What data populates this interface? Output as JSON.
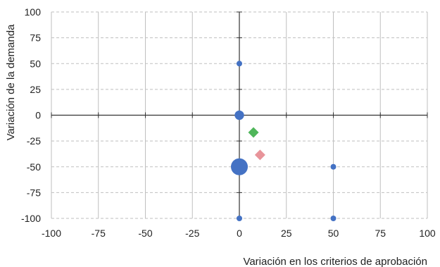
{
  "chart_data": {
    "type": "scatter",
    "xlabel": "Variación en los criterios de aprobación",
    "ylabel": "Variación de la demanda",
    "xlim": [
      -100,
      100
    ],
    "ylim": [
      -100,
      100
    ],
    "x_ticks": [
      -100,
      -75,
      -50,
      -25,
      0,
      25,
      50,
      75,
      100
    ],
    "y_ticks": [
      100,
      75,
      50,
      25,
      0,
      -25,
      -50,
      -75,
      -100
    ],
    "x_tick_labels": [
      "-100",
      "-75",
      "-50",
      "-25",
      "0",
      "25",
      "50",
      "75",
      "100"
    ],
    "y_tick_labels": [
      "100",
      "75",
      "50",
      "25",
      "0",
      "-25",
      "-50",
      "-75",
      "-100"
    ],
    "grid": true,
    "colors": {
      "bubble": "#4472c4",
      "green_marker": "#4fb65a",
      "pink_marker": "#e8949a",
      "grid": "#bfbfbf",
      "axis": "#333333"
    },
    "series": [
      {
        "marker": "circle",
        "points": [
          {
            "x": 0,
            "y": 50,
            "size": 1
          },
          {
            "x": 0,
            "y": 0,
            "size": 3
          },
          {
            "x": 0,
            "y": -50,
            "size": 7
          },
          {
            "x": 0,
            "y": -100,
            "size": 1
          },
          {
            "x": 50,
            "y": -50,
            "size": 1
          },
          {
            "x": 50,
            "y": -100,
            "size": 1
          }
        ]
      },
      {
        "marker": "diamond",
        "color": "green",
        "points": [
          {
            "x": 7.5,
            "y": -16.7
          }
        ]
      },
      {
        "marker": "diamond",
        "color": "pink",
        "points": [
          {
            "x": 11,
            "y": -38.5
          }
        ]
      }
    ]
  }
}
